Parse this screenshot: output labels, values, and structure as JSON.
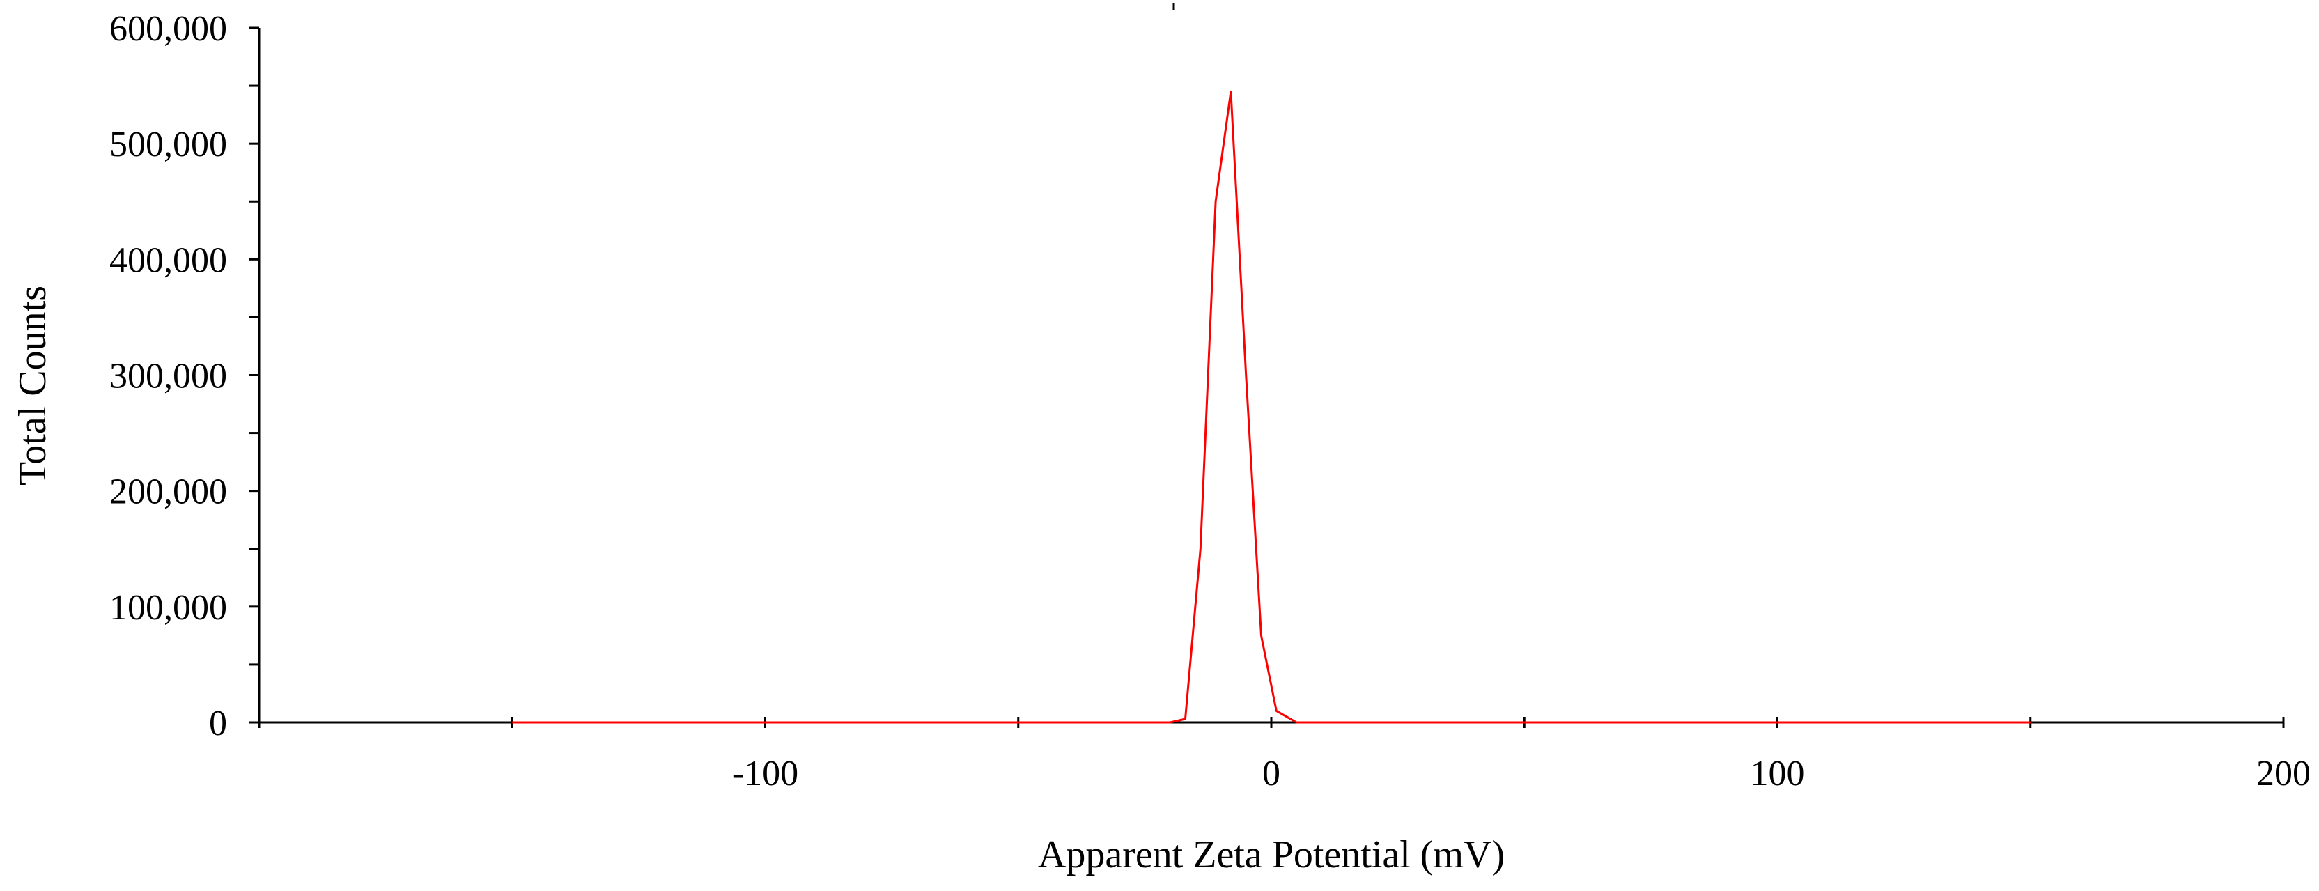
{
  "chart_data": {
    "type": "line",
    "title": "",
    "xlabel": "Apparent Zeta Potential (mV)",
    "ylabel": "Total Counts",
    "xlim": [
      -200,
      200
    ],
    "ylim": [
      0,
      600000
    ],
    "x_ticks": [
      -100,
      0,
      100,
      200
    ],
    "x_tick_labels": [
      "-100",
      "0",
      "100",
      "200"
    ],
    "x_minor_ticks": [
      -150,
      -50,
      50,
      150
    ],
    "y_ticks": [
      0,
      100000,
      200000,
      300000,
      400000,
      500000,
      600000
    ],
    "y_tick_labels": [
      "0",
      "100,000",
      "200,000",
      "300,000",
      "400,000",
      "500,000",
      "600,000"
    ],
    "grid": false,
    "legend": "none",
    "series": [
      {
        "color": "#ff0000",
        "x": [
          -150,
          -100,
          -50,
          -20,
          -17,
          -14,
          -11,
          -8,
          -5,
          -2,
          1,
          5,
          10,
          50,
          100,
          150
        ],
        "y": [
          0,
          0,
          0,
          0,
          3000,
          150000,
          450000,
          545000,
          300000,
          75000,
          10000,
          0,
          0,
          0,
          0,
          0
        ]
      }
    ]
  }
}
